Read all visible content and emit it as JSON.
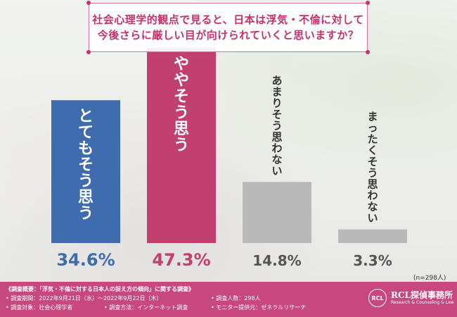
{
  "title": {
    "line1": "社会心理学的観点で見ると、日本は浮気・不倫に対して",
    "line2": "今後さらに厳しい目が向けられていくと思いますか？"
  },
  "chart_data": {
    "type": "bar",
    "categories": [
      "とてもそう思う",
      "ややそう思う",
      "あまりそう思わない",
      "まったくそう思わない"
    ],
    "values": [
      34.6,
      47.3,
      14.8,
      3.3
    ],
    "value_labels": [
      "34.6%",
      "47.3%",
      "14.8%",
      "3.3%"
    ],
    "colors": [
      "#3f6cad",
      "#c1406f",
      "#b9b9b9",
      "#b9b9b9"
    ],
    "label_colors": [
      "#ffffff",
      "#ffffff",
      "#333333",
      "#333333"
    ],
    "pct_colors": [
      "#3f6cad",
      "#c1406f",
      "#555555",
      "#555555"
    ],
    "ylim": [
      0,
      50
    ],
    "grid": false,
    "legend": "none"
  },
  "sample_size": "(n=298人)",
  "footer": {
    "title": "《調査概要：「浮気・不倫に対する日本人の捉え方の傾向」に関する調査》",
    "period": "• 調査期間：2022年9月21日（水）〜2022年9月22日（木）",
    "target": "• 調査対象：社会心理学者",
    "method": "• 調査方法：インターネット調査",
    "count": "• 調査人数：298人",
    "provider": "• モニター提供元：ゼネラルリサーチ"
  },
  "logo": {
    "seal": "RCL",
    "name": "RCL探偵事務所",
    "sub": "Research & Counseling & Law"
  },
  "colors": {
    "accent": "#c5306e",
    "footer_bg": "#c9477f"
  }
}
